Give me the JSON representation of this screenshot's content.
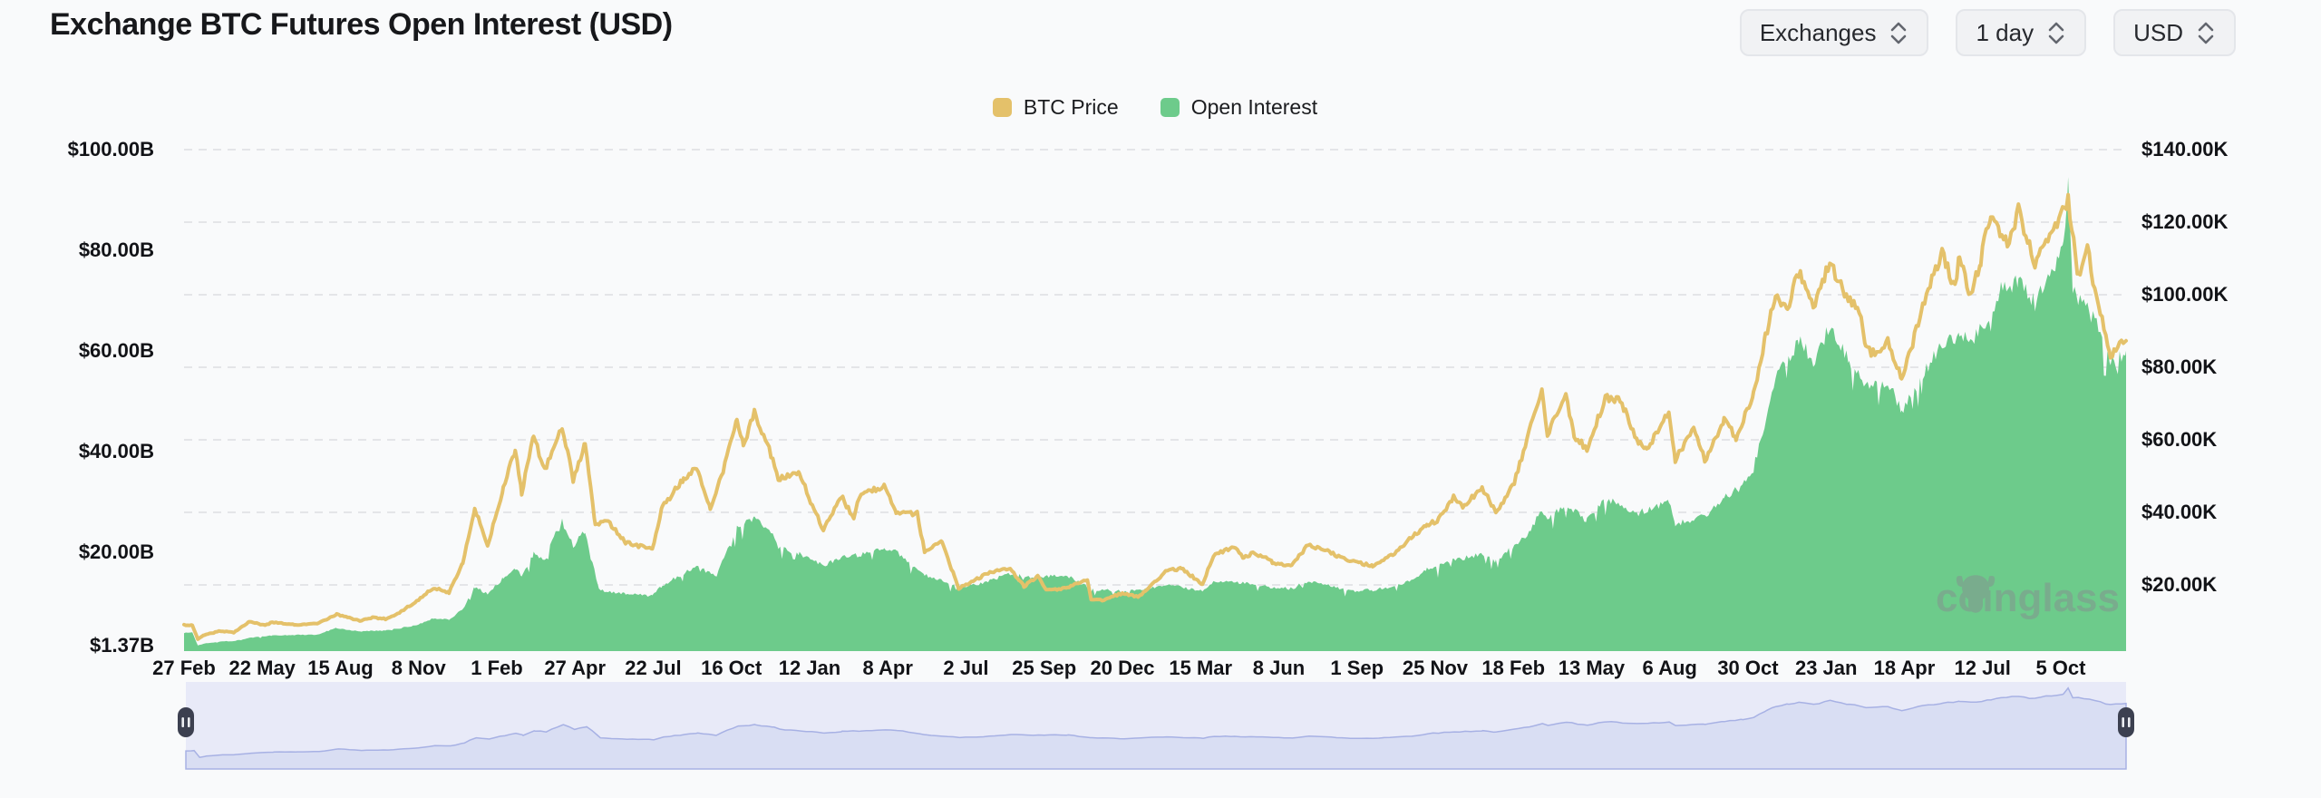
{
  "header": {
    "title": "Exchange BTC Futures Open Interest (USD)"
  },
  "controls": [
    {
      "label": "Exchanges"
    },
    {
      "label": "1 day"
    },
    {
      "label": "USD"
    }
  ],
  "legend": {
    "items": [
      {
        "label": "BTC Price",
        "color": "#e4c16a"
      },
      {
        "label": "Open Interest",
        "color": "#6dcb8b"
      }
    ]
  },
  "watermark": {
    "text": "coinglass"
  },
  "colors": {
    "background": "#f9fafb",
    "gridline": "#e4e5e8",
    "btc_price": "#e4c16a",
    "open_interest": "#6dcb8b",
    "navigator_bg": "#e8eaf8",
    "navigator_fill": "#d9def3",
    "navigator_line": "#a7b1e4",
    "navigator_handle": "#3c4050"
  },
  "chart_data": {
    "type": "area",
    "title": "Exchange BTC Futures Open Interest (USD)",
    "x_start": "2020-02-27",
    "x_end": "2025-12-08",
    "x_tick_interval_days": 85,
    "x_tick_labels": [
      "27 Feb",
      "22 May",
      "15 Aug",
      "8 Nov",
      "1 Feb",
      "27 Apr",
      "22 Jul",
      "16 Oct",
      "12 Jan",
      "8 Apr",
      "2 Jul",
      "25 Sep",
      "20 Dec",
      "15 Mar",
      "8 Jun",
      "1 Sep",
      "25 Nov",
      "18 Feb",
      "13 May",
      "6 Aug",
      "30 Oct",
      "23 Jan",
      "18 Apr",
      "12 Jul",
      "5 Oct"
    ],
    "grid": "horizontal-dashed-on-right-axis-rows",
    "legend_position": "top-center",
    "left_axis": {
      "name": "Open Interest",
      "unit": "USD billions",
      "labels": [
        "$100.00B",
        "$80.00B",
        "$60.00B",
        "$40.00B",
        "$20.00B",
        "$1.37B"
      ],
      "values": [
        100,
        80,
        60,
        40,
        20,
        1.37
      ],
      "min": 1.37,
      "max": 100
    },
    "right_axis": {
      "name": "BTC Price",
      "unit": "USD thousands",
      "labels": [
        "$140.00K",
        "$120.00K",
        "$100.00K",
        "$80.00K",
        "$60.00K",
        "$40.00K",
        "$20.00K"
      ],
      "values": [
        140,
        120,
        100,
        80,
        60,
        40,
        20
      ],
      "min": 2,
      "max": 140
    },
    "series": [
      {
        "name": "Open Interest",
        "type": "area",
        "axis": "left",
        "color": "#6dcb8b",
        "unit": "USD billions",
        "points": [
          [
            "2020-02-27",
            3.9
          ],
          [
            "2020-03-07",
            4.0
          ],
          [
            "2020-03-13",
            1.4
          ],
          [
            "2020-03-20",
            1.8
          ],
          [
            "2020-04-07",
            2.2
          ],
          [
            "2020-04-21",
            2.3
          ],
          [
            "2020-05-08",
            2.9
          ],
          [
            "2020-06-02",
            3.4
          ],
          [
            "2020-06-27",
            3.5
          ],
          [
            "2020-07-21",
            3.6
          ],
          [
            "2020-08-11",
            4.9
          ],
          [
            "2020-09-05",
            4.2
          ],
          [
            "2020-10-04",
            4.4
          ],
          [
            "2020-10-21",
            4.9
          ],
          [
            "2020-11-06",
            5.5
          ],
          [
            "2020-11-24",
            6.8
          ],
          [
            "2020-12-11",
            6.6
          ],
          [
            "2020-12-26",
            8.6
          ],
          [
            "2021-01-08",
            13.0
          ],
          [
            "2021-01-22",
            11.7
          ],
          [
            "2021-02-08",
            14.8
          ],
          [
            "2021-02-21",
            16.9
          ],
          [
            "2021-02-28",
            15.1
          ],
          [
            "2021-03-13",
            19.6
          ],
          [
            "2021-03-25",
            18.3
          ],
          [
            "2021-04-13",
            26.8
          ],
          [
            "2021-04-25",
            21.2
          ],
          [
            "2021-05-08",
            24.2
          ],
          [
            "2021-05-23",
            12.4
          ],
          [
            "2021-06-21",
            11.7
          ],
          [
            "2021-07-20",
            11.2
          ],
          [
            "2021-07-31",
            13.4
          ],
          [
            "2021-08-23",
            15.7
          ],
          [
            "2021-09-06",
            17.3
          ],
          [
            "2021-09-26",
            15.1
          ],
          [
            "2021-10-20",
            24.8
          ],
          [
            "2021-11-08",
            26.7
          ],
          [
            "2021-11-28",
            23.4
          ],
          [
            "2021-12-04",
            21.1
          ],
          [
            "2021-12-27",
            19.6
          ],
          [
            "2022-01-22",
            17.3
          ],
          [
            "2022-02-10",
            18.8
          ],
          [
            "2022-03-02",
            19.4
          ],
          [
            "2022-03-29",
            20.6
          ],
          [
            "2022-04-11",
            20.0
          ],
          [
            "2022-05-12",
            15.4
          ],
          [
            "2022-06-18",
            13.1
          ],
          [
            "2022-07-08",
            13.6
          ],
          [
            "2022-08-13",
            15.6
          ],
          [
            "2022-09-12",
            15.1
          ],
          [
            "2022-10-14",
            15.3
          ],
          [
            "2022-11-09",
            12.6
          ],
          [
            "2022-12-14",
            12.1
          ],
          [
            "2023-01-29",
            13.4
          ],
          [
            "2023-03-10",
            12.4
          ],
          [
            "2023-03-22",
            13.9
          ],
          [
            "2023-04-13",
            14.1
          ],
          [
            "2023-05-25",
            13.0
          ],
          [
            "2023-06-15",
            12.7
          ],
          [
            "2023-07-03",
            14.3
          ],
          [
            "2023-08-17",
            12.3
          ],
          [
            "2023-09-11",
            12.4
          ],
          [
            "2023-10-23",
            14.2
          ],
          [
            "2023-11-09",
            16.6
          ],
          [
            "2023-12-08",
            18.4
          ],
          [
            "2024-01-08",
            19.6
          ],
          [
            "2024-01-23",
            18.1
          ],
          [
            "2024-02-28",
            23.9
          ],
          [
            "2024-03-13",
            28.6
          ],
          [
            "2024-03-19",
            26.2
          ],
          [
            "2024-04-08",
            29.7
          ],
          [
            "2024-05-01",
            26.2
          ],
          [
            "2024-05-21",
            30.6
          ],
          [
            "2024-06-24",
            27.6
          ],
          [
            "2024-07-29",
            29.9
          ],
          [
            "2024-08-05",
            25.4
          ],
          [
            "2024-09-06",
            27.2
          ],
          [
            "2024-09-27",
            30.8
          ],
          [
            "2024-10-17",
            33.5
          ],
          [
            "2024-10-29",
            36.5
          ],
          [
            "2024-11-12",
            47.0
          ],
          [
            "2024-11-22",
            55.0
          ],
          [
            "2024-12-06",
            58.5
          ],
          [
            "2024-12-17",
            62.0
          ],
          [
            "2025-01-02",
            58.0
          ],
          [
            "2025-01-20",
            65.0
          ],
          [
            "2025-02-10",
            58.5
          ],
          [
            "2025-02-28",
            52.5
          ],
          [
            "2025-03-24",
            54.0
          ],
          [
            "2025-04-08",
            48.0
          ],
          [
            "2025-05-01",
            55.5
          ],
          [
            "2025-05-22",
            61.0
          ],
          [
            "2025-06-10",
            63.5
          ],
          [
            "2025-06-22",
            61.5
          ],
          [
            "2025-07-14",
            67.5
          ],
          [
            "2025-07-25",
            72.0
          ],
          [
            "2025-08-13",
            74.0
          ],
          [
            "2025-08-31",
            69.5
          ],
          [
            "2025-09-18",
            76.0
          ],
          [
            "2025-10-01",
            80.0
          ],
          [
            "2025-10-06",
            93.7
          ],
          [
            "2025-10-11",
            72.0
          ],
          [
            "2025-10-17",
            70.5
          ],
          [
            "2025-11-04",
            66.0
          ],
          [
            "2025-11-21",
            57.5
          ],
          [
            "2025-12-08",
            60.0
          ]
        ]
      },
      {
        "name": "BTC Price",
        "type": "line",
        "axis": "right",
        "color": "#e4c16a",
        "unit": "USD thousands",
        "points": [
          [
            "2020-02-27",
            9.0
          ],
          [
            "2020-03-07",
            8.9
          ],
          [
            "2020-03-13",
            5.0
          ],
          [
            "2020-03-20",
            6.2
          ],
          [
            "2020-04-07",
            7.3
          ],
          [
            "2020-04-21",
            6.9
          ],
          [
            "2020-05-08",
            9.9
          ],
          [
            "2020-05-25",
            8.8
          ],
          [
            "2020-06-02",
            9.7
          ],
          [
            "2020-06-27",
            9.0
          ],
          [
            "2020-07-21",
            9.3
          ],
          [
            "2020-08-11",
            11.9
          ],
          [
            "2020-09-05",
            10.1
          ],
          [
            "2020-09-19",
            11.0
          ],
          [
            "2020-10-04",
            10.6
          ],
          [
            "2020-10-21",
            12.8
          ],
          [
            "2020-11-06",
            15.6
          ],
          [
            "2020-11-24",
            19.2
          ],
          [
            "2020-12-11",
            17.9
          ],
          [
            "2020-12-26",
            26.3
          ],
          [
            "2021-01-08",
            41.0
          ],
          [
            "2021-01-22",
            30.9
          ],
          [
            "2021-02-08",
            46.4
          ],
          [
            "2021-02-21",
            57.4
          ],
          [
            "2021-02-28",
            45.2
          ],
          [
            "2021-03-13",
            61.2
          ],
          [
            "2021-03-25",
            51.4
          ],
          [
            "2021-04-13",
            63.6
          ],
          [
            "2021-04-25",
            49.1
          ],
          [
            "2021-05-08",
            58.8
          ],
          [
            "2021-05-19",
            36.9
          ],
          [
            "2021-06-02",
            37.6
          ],
          [
            "2021-06-21",
            31.7
          ],
          [
            "2021-07-20",
            29.8
          ],
          [
            "2021-07-31",
            41.5
          ],
          [
            "2021-08-23",
            49.3
          ],
          [
            "2021-09-06",
            52.7
          ],
          [
            "2021-09-21",
            40.8
          ],
          [
            "2021-10-05",
            51.5
          ],
          [
            "2021-10-20",
            66.0
          ],
          [
            "2021-10-27",
            58.4
          ],
          [
            "2021-11-08",
            67.6
          ],
          [
            "2021-11-28",
            54.7
          ],
          [
            "2021-12-04",
            49.3
          ],
          [
            "2021-12-27",
            50.7
          ],
          [
            "2022-01-10",
            41.8
          ],
          [
            "2022-01-22",
            35.1
          ],
          [
            "2022-02-10",
            44.6
          ],
          [
            "2022-02-24",
            38.4
          ],
          [
            "2022-03-02",
            44.4
          ],
          [
            "2022-03-29",
            47.4
          ],
          [
            "2022-04-11",
            39.5
          ],
          [
            "2022-05-04",
            39.7
          ],
          [
            "2022-05-12",
            29.0
          ],
          [
            "2022-05-31",
            31.8
          ],
          [
            "2022-06-13",
            22.5
          ],
          [
            "2022-06-18",
            19.0
          ],
          [
            "2022-07-08",
            21.6
          ],
          [
            "2022-07-20",
            23.3
          ],
          [
            "2022-08-13",
            24.4
          ],
          [
            "2022-08-28",
            19.6
          ],
          [
            "2022-09-12",
            22.4
          ],
          [
            "2022-09-21",
            18.5
          ],
          [
            "2022-10-14",
            19.2
          ],
          [
            "2022-11-05",
            21.3
          ],
          [
            "2022-11-09",
            15.9
          ],
          [
            "2022-11-21",
            15.8
          ],
          [
            "2022-12-14",
            17.8
          ],
          [
            "2022-12-30",
            16.6
          ],
          [
            "2023-01-13",
            19.9
          ],
          [
            "2023-01-29",
            23.7
          ],
          [
            "2023-02-15",
            24.6
          ],
          [
            "2023-03-10",
            20.2
          ],
          [
            "2023-03-22",
            28.2
          ],
          [
            "2023-04-13",
            30.4
          ],
          [
            "2023-04-24",
            27.5
          ],
          [
            "2023-05-06",
            28.9
          ],
          [
            "2023-05-25",
            26.3
          ],
          [
            "2023-06-15",
            25.1
          ],
          [
            "2023-07-03",
            31.2
          ],
          [
            "2023-07-24",
            29.2
          ],
          [
            "2023-08-17",
            26.7
          ],
          [
            "2023-09-11",
            25.2
          ],
          [
            "2023-10-01",
            28.0
          ],
          [
            "2023-10-23",
            33.1
          ],
          [
            "2023-11-09",
            36.7
          ],
          [
            "2023-11-20",
            37.4
          ],
          [
            "2023-12-08",
            44.2
          ],
          [
            "2023-12-18",
            41.5
          ],
          [
            "2024-01-08",
            46.9
          ],
          [
            "2024-01-23",
            39.9
          ],
          [
            "2024-02-12",
            48.1
          ],
          [
            "2024-02-28",
            62.4
          ],
          [
            "2024-03-13",
            73.1
          ],
          [
            "2024-03-19",
            61.9
          ],
          [
            "2024-04-08",
            71.6
          ],
          [
            "2024-04-17",
            61.3
          ],
          [
            "2024-05-01",
            57.5
          ],
          [
            "2024-05-21",
            71.4
          ],
          [
            "2024-06-06",
            71.1
          ],
          [
            "2024-06-24",
            60.3
          ],
          [
            "2024-07-05",
            56.7
          ],
          [
            "2024-07-29",
            68.2
          ],
          [
            "2024-08-05",
            54.1
          ],
          [
            "2024-08-25",
            64.2
          ],
          [
            "2024-09-06",
            54.2
          ],
          [
            "2024-09-27",
            65.8
          ],
          [
            "2024-10-10",
            60.3
          ],
          [
            "2024-10-29",
            72.7
          ],
          [
            "2024-11-11",
            88.7
          ],
          [
            "2024-11-22",
            99.0
          ],
          [
            "2024-12-05",
            96.6
          ],
          [
            "2024-12-17",
            106.1
          ],
          [
            "2025-01-02",
            96.9
          ],
          [
            "2025-01-20",
            109.1
          ],
          [
            "2025-02-03",
            101.3
          ],
          [
            "2025-02-21",
            96.1
          ],
          [
            "2025-02-28",
            84.7
          ],
          [
            "2025-03-14",
            83.9
          ],
          [
            "2025-03-24",
            88.0
          ],
          [
            "2025-04-08",
            76.3
          ],
          [
            "2025-05-01",
            96.5
          ],
          [
            "2025-05-22",
            111.7
          ],
          [
            "2025-06-05",
            101.6
          ],
          [
            "2025-06-10",
            110.3
          ],
          [
            "2025-06-22",
            99.0
          ],
          [
            "2025-07-03",
            109.6
          ],
          [
            "2025-07-14",
            123.0
          ],
          [
            "2025-08-01",
            113.4
          ],
          [
            "2025-08-13",
            123.5
          ],
          [
            "2025-08-31",
            108.2
          ],
          [
            "2025-09-18",
            117.5
          ],
          [
            "2025-10-06",
            126.1
          ],
          [
            "2025-10-17",
            104.8
          ],
          [
            "2025-10-27",
            113.9
          ],
          [
            "2025-11-04",
            101.2
          ],
          [
            "2025-11-21",
            83.6
          ],
          [
            "2025-12-01",
            86.4
          ],
          [
            "2025-12-08",
            87.3
          ]
        ]
      }
    ],
    "navigator": {
      "series": "Open Interest",
      "scale": "sqrt"
    }
  }
}
